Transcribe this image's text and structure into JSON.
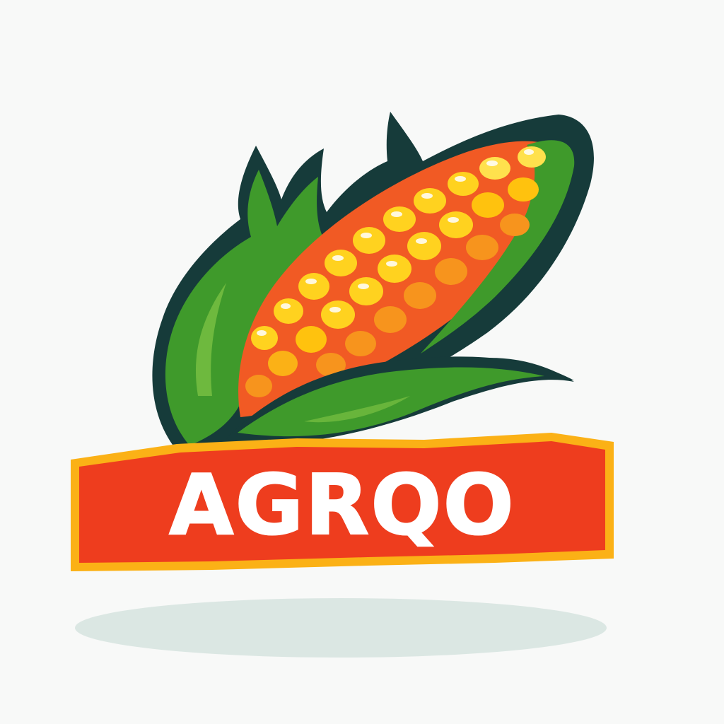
{
  "logo": {
    "wordmark": "AGRQO",
    "icon": "corn-cob-icon"
  },
  "colors": {
    "background": "#f8f9f8",
    "outline": "#163b3a",
    "leaf_green": "#3f9a2b",
    "leaf_light": "#7ac143",
    "kernel_yellow": "#ffd21f",
    "kernel_orange": "#f7941d",
    "kernel_red": "#ef4123",
    "badge_red": "#ee3d1e",
    "badge_gold": "#fbb116",
    "text_white": "#ffffff",
    "shadow": "#dbe7e3"
  }
}
